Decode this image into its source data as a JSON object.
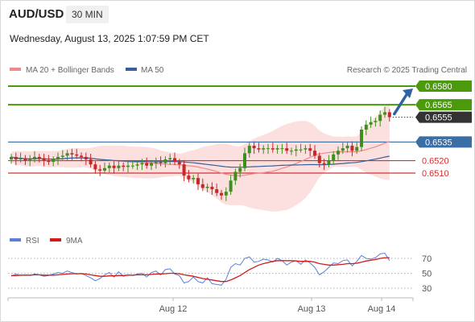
{
  "header": {
    "symbol": "AUD/USD",
    "timeframe": "30 MIN",
    "datetime": "Wednesday, August 13, 2025 1:07:59 PM CET"
  },
  "credit": "Research © 2025 Trading Central",
  "colors": {
    "resistance": "#4a9a0c",
    "pivot": "#3a6ea5",
    "support": "#d33333",
    "last": "#333333",
    "ma20": "#f08a8a",
    "ma50": "#35609a",
    "band_fill": "#fbd9d9",
    "candle_up": "#3f8f1f",
    "candle_down": "#c62828",
    "rsi": "#5b7fd6",
    "rsi_ma": "#d01b1b",
    "arrow": "#2f63a3"
  },
  "chart_data": [
    {
      "type": "candlestick",
      "series": [
        {
          "name": "MA 20 + Bollinger Bands",
          "type": "line+band"
        },
        {
          "name": "MA 50",
          "type": "line"
        }
      ],
      "levels": [
        {
          "value": 0.658,
          "label": "0.6580",
          "role": "resistance"
        },
        {
          "value": 0.6565,
          "label": "0.6565",
          "role": "resistance"
        },
        {
          "value": 0.6555,
          "label": "0.6555",
          "role": "last"
        },
        {
          "value": 0.6535,
          "label": "0.6535",
          "role": "pivot"
        },
        {
          "value": 0.652,
          "label": "0.6520",
          "role": "support"
        },
        {
          "value": 0.651,
          "label": "0.6510",
          "role": "support"
        }
      ],
      "x_labels": [
        "Aug 12",
        "Aug 13",
        "Aug 14"
      ],
      "close": [
        0.6523,
        0.6521,
        0.6522,
        0.652,
        0.6521,
        0.6523,
        0.6522,
        0.652,
        0.6519,
        0.6521,
        0.6523,
        0.6524,
        0.6526,
        0.6525,
        0.6524,
        0.6523,
        0.6521,
        0.6517,
        0.6513,
        0.6512,
        0.6514,
        0.6516,
        0.6514,
        0.6516,
        0.6515,
        0.6516,
        0.6516,
        0.6517,
        0.6518,
        0.6516,
        0.6518,
        0.6519,
        0.6518,
        0.6521,
        0.6522,
        0.6519,
        0.6517,
        0.6508,
        0.6505,
        0.6506,
        0.6501,
        0.6498,
        0.6499,
        0.6497,
        0.6494,
        0.6492,
        0.6495,
        0.6504,
        0.6511,
        0.6514,
        0.6526,
        0.6532,
        0.653,
        0.6529,
        0.653,
        0.653,
        0.6529,
        0.653,
        0.653,
        0.6528,
        0.6528,
        0.6529,
        0.6529,
        0.653,
        0.6528,
        0.6524,
        0.6518,
        0.6517,
        0.652,
        0.6525,
        0.6528,
        0.653,
        0.6532,
        0.6528,
        0.6531,
        0.6545,
        0.6549,
        0.6551,
        0.6552,
        0.6557,
        0.6559,
        0.6555
      ]
    },
    {
      "type": "line",
      "series": [
        {
          "name": "RSI"
        },
        {
          "name": "9MA"
        }
      ],
      "y_ticks": [
        70,
        50,
        30
      ],
      "ylim": [
        20,
        80
      ],
      "rsi": [
        46,
        49,
        47,
        48,
        47,
        49,
        48,
        46,
        47,
        49,
        51,
        50,
        53,
        51,
        49,
        50,
        47,
        44,
        40,
        43,
        48,
        51,
        45,
        52,
        46,
        48,
        47,
        49,
        50,
        45,
        51,
        53,
        48,
        55,
        56,
        49,
        47,
        37,
        39,
        45,
        39,
        37,
        44,
        36,
        35,
        34,
        42,
        58,
        63,
        61,
        70,
        72,
        65,
        66,
        69,
        68,
        65,
        70,
        67,
        61,
        65,
        67,
        62,
        68,
        64,
        58,
        48,
        52,
        58,
        64,
        63,
        67,
        68,
        60,
        66,
        74,
        70,
        69,
        71,
        76,
        77,
        67
      ],
      "ma9": [
        47,
        47,
        47.5,
        47.5,
        47.5,
        48,
        48,
        47.5,
        47.5,
        47.5,
        48,
        48.5,
        49,
        49.5,
        49.5,
        49.5,
        49,
        48,
        47,
        46,
        46,
        46.5,
        46.5,
        47,
        47,
        47.5,
        47.5,
        48,
        48,
        48,
        48.5,
        49,
        49,
        49.5,
        50,
        50,
        49.5,
        48,
        47,
        46,
        44.5,
        43,
        42,
        41,
        40,
        39,
        39,
        41,
        44,
        47,
        51,
        55,
        58,
        61,
        63,
        64.5,
        66,
        67,
        67,
        67,
        67,
        66.5,
        66,
        66,
        66,
        65,
        63,
        62,
        61,
        61,
        61.5,
        62,
        63,
        63,
        63.5,
        65,
        66.5,
        67.5,
        68.5,
        70,
        71,
        71
      ]
    }
  ]
}
